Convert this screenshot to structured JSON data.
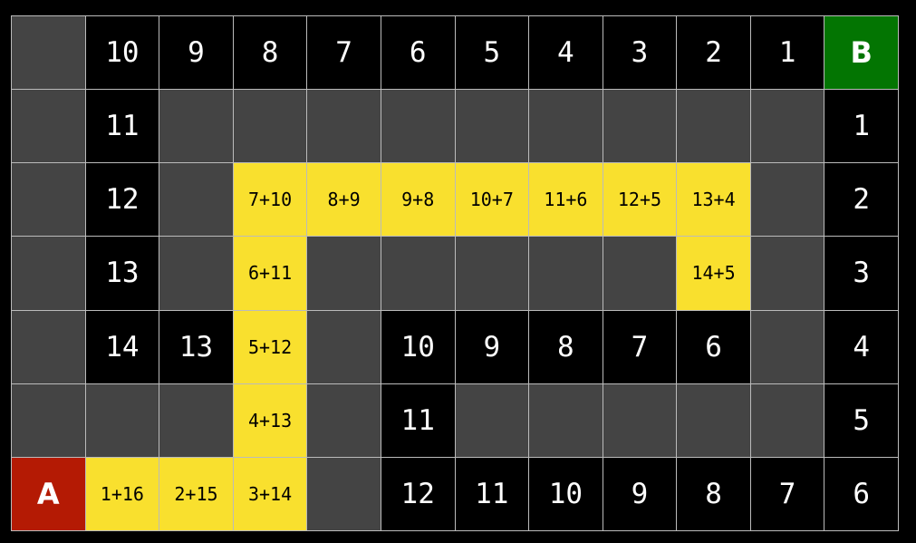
{
  "colors": {
    "wall": "#444444",
    "open": "#000000",
    "path": "#f9e02e",
    "start": "#b41a04",
    "goal": "#037502"
  },
  "grid": [
    [
      {
        "t": "wall"
      },
      {
        "t": "num",
        "v": "10"
      },
      {
        "t": "num",
        "v": "9"
      },
      {
        "t": "num",
        "v": "8"
      },
      {
        "t": "num",
        "v": "7"
      },
      {
        "t": "num",
        "v": "6"
      },
      {
        "t": "num",
        "v": "5"
      },
      {
        "t": "num",
        "v": "4"
      },
      {
        "t": "num",
        "v": "3"
      },
      {
        "t": "num",
        "v": "2"
      },
      {
        "t": "num",
        "v": "1"
      },
      {
        "t": "goal",
        "v": "B"
      }
    ],
    [
      {
        "t": "wall"
      },
      {
        "t": "num",
        "v": "11"
      },
      {
        "t": "wall"
      },
      {
        "t": "wall"
      },
      {
        "t": "wall"
      },
      {
        "t": "wall"
      },
      {
        "t": "wall"
      },
      {
        "t": "wall"
      },
      {
        "t": "wall"
      },
      {
        "t": "wall"
      },
      {
        "t": "wall"
      },
      {
        "t": "num",
        "v": "1"
      }
    ],
    [
      {
        "t": "wall"
      },
      {
        "t": "num",
        "v": "12"
      },
      {
        "t": "wall"
      },
      {
        "t": "path",
        "v": "7+10"
      },
      {
        "t": "path",
        "v": "8+9"
      },
      {
        "t": "path",
        "v": "9+8"
      },
      {
        "t": "path",
        "v": "10+7"
      },
      {
        "t": "path",
        "v": "11+6"
      },
      {
        "t": "path",
        "v": "12+5"
      },
      {
        "t": "path",
        "v": "13+4"
      },
      {
        "t": "wall"
      },
      {
        "t": "num",
        "v": "2"
      }
    ],
    [
      {
        "t": "wall"
      },
      {
        "t": "num",
        "v": "13"
      },
      {
        "t": "wall"
      },
      {
        "t": "path",
        "v": "6+11"
      },
      {
        "t": "wall"
      },
      {
        "t": "wall"
      },
      {
        "t": "wall"
      },
      {
        "t": "wall"
      },
      {
        "t": "wall"
      },
      {
        "t": "path",
        "v": "14+5"
      },
      {
        "t": "wall"
      },
      {
        "t": "num",
        "v": "3"
      }
    ],
    [
      {
        "t": "wall"
      },
      {
        "t": "num",
        "v": "14"
      },
      {
        "t": "num",
        "v": "13"
      },
      {
        "t": "path",
        "v": "5+12"
      },
      {
        "t": "wall"
      },
      {
        "t": "num",
        "v": "10"
      },
      {
        "t": "num",
        "v": "9"
      },
      {
        "t": "num",
        "v": "8"
      },
      {
        "t": "num",
        "v": "7"
      },
      {
        "t": "num",
        "v": "6"
      },
      {
        "t": "wall"
      },
      {
        "t": "num",
        "v": "4"
      }
    ],
    [
      {
        "t": "wall"
      },
      {
        "t": "wall"
      },
      {
        "t": "wall"
      },
      {
        "t": "path",
        "v": "4+13"
      },
      {
        "t": "wall"
      },
      {
        "t": "num",
        "v": "11"
      },
      {
        "t": "wall"
      },
      {
        "t": "wall"
      },
      {
        "t": "wall"
      },
      {
        "t": "wall"
      },
      {
        "t": "wall"
      },
      {
        "t": "num",
        "v": "5"
      }
    ],
    [
      {
        "t": "start",
        "v": "A"
      },
      {
        "t": "path",
        "v": "1+16"
      },
      {
        "t": "path",
        "v": "2+15"
      },
      {
        "t": "path",
        "v": "3+14"
      },
      {
        "t": "wall"
      },
      {
        "t": "num",
        "v": "12"
      },
      {
        "t": "num",
        "v": "11"
      },
      {
        "t": "num",
        "v": "10"
      },
      {
        "t": "num",
        "v": "9"
      },
      {
        "t": "num",
        "v": "8"
      },
      {
        "t": "num",
        "v": "7"
      },
      {
        "t": "num",
        "v": "6"
      }
    ]
  ]
}
